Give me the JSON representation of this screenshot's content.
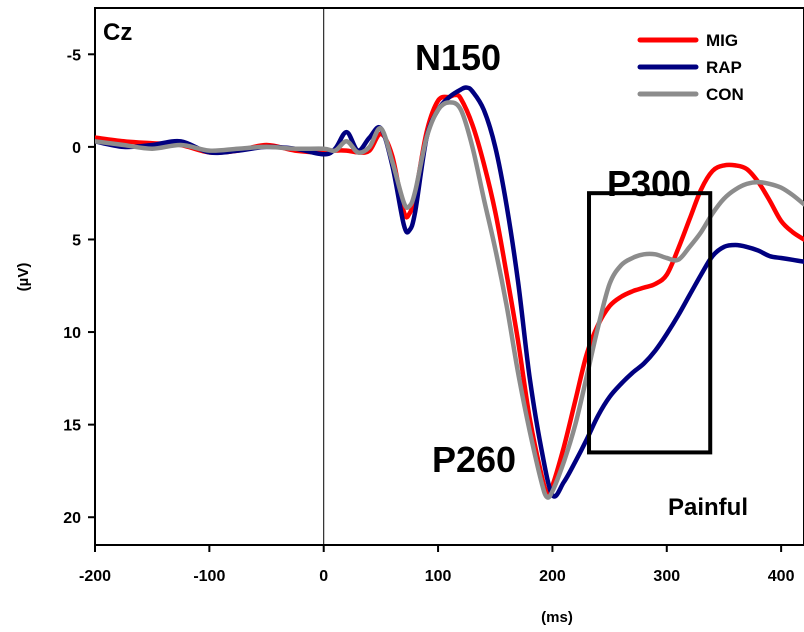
{
  "chart_data": {
    "type": "line",
    "xlabel": "(ms)",
    "ylabel": "(µV)",
    "xlim": [
      -200,
      420
    ],
    "ylim": [
      -7.5,
      21.5
    ],
    "y_inverted": true,
    "xticks": [
      -200,
      -100,
      0,
      100,
      200,
      300,
      400
    ],
    "yticks": [
      -5,
      0,
      5,
      10,
      15,
      20
    ],
    "grid": false,
    "legend_position": "top-right",
    "annotations": {
      "channel": "Cz",
      "n150": "N150",
      "p260": "P260",
      "p300": "P300",
      "condition": "Painful"
    },
    "highlight_box": {
      "label": "P300",
      "x_range": [
        232,
        338
      ],
      "y_range": [
        2.5,
        16.5
      ]
    },
    "series": [
      {
        "name": "MIG",
        "color": "#ff0000",
        "x": [
          -200,
          -175,
          -150,
          -125,
          -100,
          -75,
          -50,
          -25,
          0,
          10,
          20,
          30,
          40,
          50,
          60,
          70,
          75,
          80,
          90,
          100,
          110,
          115,
          120,
          130,
          140,
          150,
          160,
          170,
          180,
          190,
          195,
          200,
          210,
          220,
          230,
          240,
          250,
          260,
          270,
          280,
          290,
          300,
          310,
          320,
          330,
          340,
          350,
          360,
          370,
          380,
          390,
          400,
          410,
          420
        ],
        "y": [
          -0.5,
          -0.3,
          -0.2,
          -0.1,
          0.3,
          0.2,
          -0.1,
          0.2,
          0.3,
          0.2,
          0.2,
          0.3,
          0.2,
          -0.7,
          0.5,
          3.5,
          3.6,
          2.6,
          -0.8,
          -2.5,
          -2.7,
          -2.8,
          -2.6,
          -1.2,
          0.9,
          3.5,
          6.9,
          10.5,
          14.6,
          17.6,
          18.6,
          18.3,
          16.2,
          13.7,
          11.2,
          9.6,
          8.6,
          8.1,
          7.8,
          7.6,
          7.4,
          6.9,
          5.5,
          3.9,
          2.3,
          1.3,
          1.0,
          1.0,
          1.2,
          1.9,
          2.9,
          4.0,
          4.6,
          5.0
        ]
      },
      {
        "name": "RAP",
        "color": "#000080",
        "x": [
          -200,
          -175,
          -150,
          -125,
          -100,
          -75,
          -50,
          -25,
          0,
          10,
          20,
          30,
          40,
          50,
          60,
          70,
          75,
          80,
          90,
          100,
          110,
          120,
          125,
          130,
          140,
          150,
          160,
          170,
          180,
          190,
          200,
          210,
          220,
          230,
          240,
          250,
          260,
          270,
          280,
          290,
          300,
          310,
          320,
          330,
          340,
          350,
          360,
          370,
          380,
          390,
          400,
          410,
          420
        ],
        "y": [
          -0.3,
          0.0,
          -0.1,
          -0.3,
          0.3,
          0.2,
          0.0,
          0.1,
          0.4,
          0.1,
          -0.8,
          0.2,
          -0.5,
          -1.0,
          1.0,
          4.2,
          4.5,
          3.5,
          -0.5,
          -2.0,
          -2.7,
          -3.1,
          -3.2,
          -3.0,
          -2.0,
          0.0,
          3.2,
          7.3,
          12.4,
          16.2,
          18.8,
          18.1,
          17.0,
          15.8,
          14.5,
          13.5,
          12.8,
          12.2,
          11.7,
          11.0,
          10.1,
          9.1,
          8.0,
          6.9,
          5.9,
          5.4,
          5.3,
          5.4,
          5.6,
          5.9,
          6.0,
          6.1,
          6.2
        ]
      },
      {
        "name": "CON",
        "color": "#8c8c8c",
        "x": [
          -200,
          -175,
          -150,
          -125,
          -100,
          -75,
          -50,
          -25,
          0,
          10,
          20,
          30,
          40,
          50,
          60,
          70,
          75,
          80,
          90,
          100,
          110,
          120,
          130,
          140,
          150,
          160,
          170,
          180,
          190,
          195,
          200,
          210,
          220,
          230,
          240,
          250,
          260,
          270,
          280,
          290,
          300,
          310,
          320,
          330,
          340,
          350,
          360,
          370,
          380,
          390,
          400,
          410,
          420
        ],
        "y": [
          -0.3,
          -0.1,
          0.1,
          -0.1,
          0.2,
          0.1,
          0.0,
          0.1,
          0.1,
          0.2,
          -0.3,
          0.3,
          0.0,
          -1.0,
          0.8,
          3.0,
          3.2,
          2.4,
          -0.5,
          -2.0,
          -2.4,
          -2.0,
          0.0,
          2.8,
          5.5,
          8.6,
          12.2,
          15.3,
          18.0,
          18.9,
          18.6,
          17.0,
          15.0,
          12.4,
          9.7,
          7.4,
          6.4,
          6.0,
          5.8,
          5.8,
          6.0,
          6.1,
          5.4,
          4.6,
          3.6,
          2.8,
          2.3,
          2.0,
          1.9,
          2.0,
          2.2,
          2.6,
          3.1
        ]
      }
    ]
  }
}
